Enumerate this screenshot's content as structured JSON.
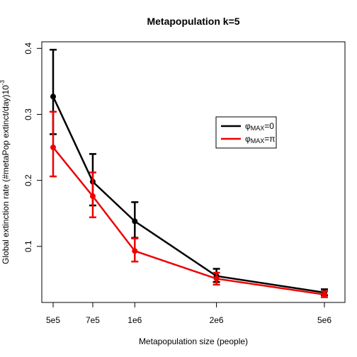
{
  "chart_data": {
    "type": "line",
    "title": "Metapopulation k=5",
    "xlabel": "Metapopulation size (people)",
    "ylabel": "Global extinction rate (#metaPop extinct/day)10",
    "ylabel_exp": "-3",
    "x_scale": "log",
    "x": [
      500000,
      700000,
      1000000,
      2000000,
      5000000
    ],
    "x_tick_labels": [
      "5e5",
      "7e5",
      "1e6",
      "2e6",
      "5e6"
    ],
    "y_ticks": [
      0.1,
      0.2,
      0.3,
      0.4
    ],
    "y_tick_labels": [
      "0.1",
      "0.2",
      "0.3",
      "0.4"
    ],
    "ylim": [
      0.015,
      0.41
    ],
    "grid": false,
    "legend_position": "right",
    "series": [
      {
        "name_sym": "φ",
        "name_sub": "MAX",
        "name_rest": "=0",
        "color": "#000000",
        "values": [
          0.327,
          0.198,
          0.138,
          0.055,
          0.03
        ],
        "err_lower": [
          0.27,
          0.162,
          0.113,
          0.046,
          0.026
        ],
        "err_upper": [
          0.398,
          0.24,
          0.167,
          0.066,
          0.035
        ]
      },
      {
        "name_sym": "φ",
        "name_sub": "MAX",
        "name_rest": "=π",
        "color": "#ee0000",
        "values": [
          0.25,
          0.176,
          0.093,
          0.051,
          0.027
        ],
        "err_lower": [
          0.206,
          0.144,
          0.077,
          0.042,
          0.023
        ],
        "err_upper": [
          0.304,
          0.212,
          0.112,
          0.06,
          0.032
        ]
      }
    ]
  }
}
